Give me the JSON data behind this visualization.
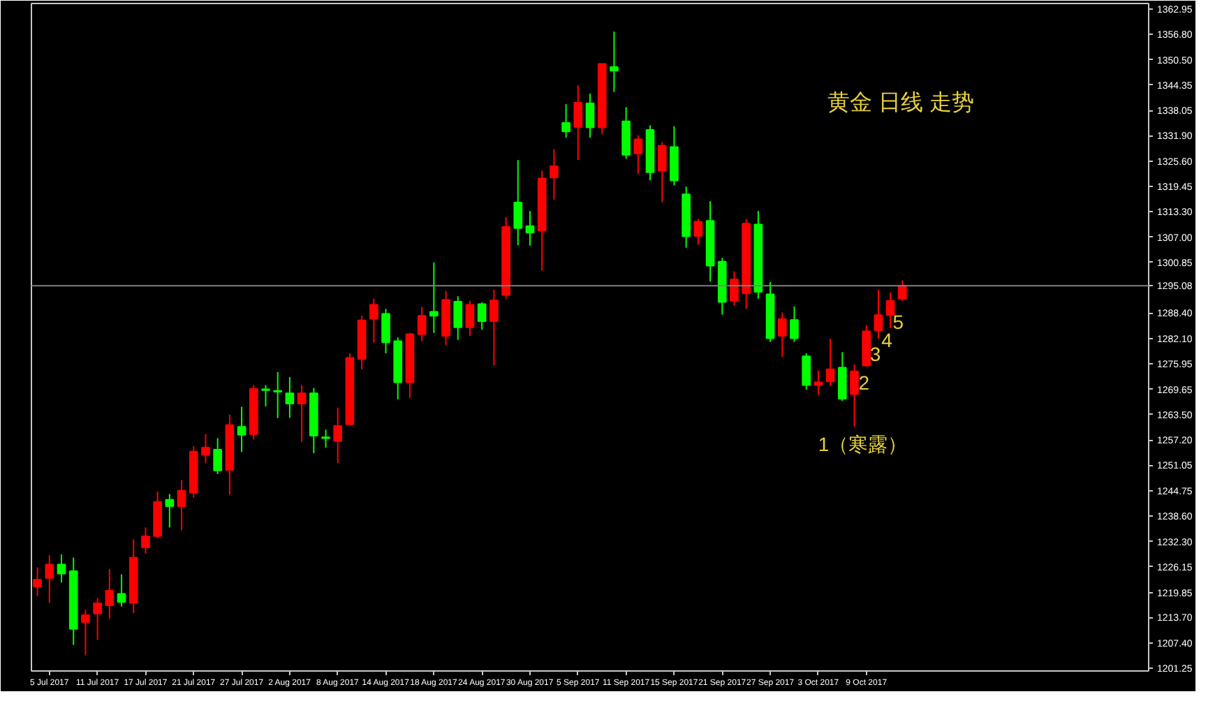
{
  "chart_data": {
    "type": "candlestick",
    "title": "黄金 日线 走势",
    "categories": [
      null,
      "5 Jul 2017",
      null,
      null,
      null,
      "11 Jul 2017",
      null,
      null,
      null,
      "17 Jul 2017",
      null,
      null,
      null,
      "21 Jul 2017",
      null,
      null,
      null,
      "27 Jul 2017",
      null,
      null,
      null,
      "2 Aug 2017",
      null,
      null,
      null,
      "8 Aug 2017",
      null,
      null,
      null,
      "14 Aug 2017",
      null,
      null,
      null,
      "18 Aug 2017",
      null,
      null,
      null,
      "24 Aug 2017",
      null,
      null,
      null,
      "30 Aug 2017",
      null,
      null,
      null,
      "5 Sep 2017",
      null,
      null,
      null,
      "11 Sep 2017",
      null,
      null,
      null,
      "15 Sep 2017",
      null,
      null,
      null,
      "21 Sep 2017",
      null,
      null,
      null,
      "27 Sep 2017",
      null,
      null,
      null,
      "3 Oct 2017",
      null,
      null,
      null,
      "9 Oct 2017",
      null,
      null,
      null,
      null,
      null,
      null,
      null,
      null,
      null,
      null,
      null,
      null,
      null,
      null,
      null,
      null,
      null,
      null,
      null,
      null,
      null,
      null,
      null
    ],
    "ohlc": [
      [
        1221.3,
        1226.0,
        1219.0,
        1223.0
      ],
      [
        1223.4,
        1229.0,
        1217.3,
        1226.7
      ],
      [
        1226.7,
        1229.2,
        1222.3,
        1224.5
      ],
      [
        1225.1,
        1228.4,
        1207.0,
        1210.9
      ],
      [
        1212.6,
        1215.6,
        1204.5,
        1214.3
      ],
      [
        1214.7,
        1218.5,
        1208.2,
        1217.2
      ],
      [
        1216.7,
        1225.6,
        1213.4,
        1220.3
      ],
      [
        1219.5,
        1224.3,
        1216.4,
        1217.5
      ],
      [
        1217.3,
        1232.9,
        1214.8,
        1228.4
      ],
      [
        1230.9,
        1235.8,
        1229.4,
        1233.6
      ],
      [
        1233.7,
        1244.6,
        1233.1,
        1242.1
      ],
      [
        1242.6,
        1244.0,
        1235.8,
        1241.0
      ],
      [
        1241.0,
        1247.4,
        1235.1,
        1244.8
      ],
      [
        1244.3,
        1255.7,
        1243.1,
        1254.4
      ],
      [
        1253.6,
        1258.7,
        1251.6,
        1255.4
      ],
      [
        1254.9,
        1257.7,
        1248.9,
        1249.8
      ],
      [
        1249.9,
        1263.5,
        1243.8,
        1260.9
      ],
      [
        1260.5,
        1265.4,
        1254.3,
        1258.5
      ],
      [
        1258.7,
        1270.7,
        1257.4,
        1269.8
      ],
      [
        1269.7,
        1270.7,
        1265.5,
        1269.5
      ],
      [
        1269.3,
        1273.9,
        1262.6,
        1269.1
      ],
      [
        1268.7,
        1272.7,
        1262.7,
        1266.2
      ],
      [
        1266.2,
        1270.7,
        1256.8,
        1268.7
      ],
      [
        1268.7,
        1270.0,
        1254.0,
        1258.3
      ],
      [
        1257.9,
        1259.8,
        1255.4,
        1257.7
      ],
      [
        1257.0,
        1265.2,
        1251.6,
        1260.7
      ],
      [
        1261.1,
        1278.5,
        1260.9,
        1277.4
      ],
      [
        1277.1,
        1287.7,
        1274.6,
        1286.6
      ],
      [
        1287.0,
        1291.9,
        1281.1,
        1290.4
      ],
      [
        1288.2,
        1289.4,
        1278.5,
        1281.2
      ],
      [
        1281.5,
        1282.4,
        1267.2,
        1271.4
      ],
      [
        1271.4,
        1283.5,
        1267.6,
        1283.2
      ],
      [
        1283.2,
        1289.9,
        1281.5,
        1287.7
      ],
      [
        1288.7,
        1300.8,
        1283.5,
        1287.7
      ],
      [
        1282.8,
        1293.8,
        1280.5,
        1291.6
      ],
      [
        1291.2,
        1292.5,
        1281.8,
        1284.9
      ],
      [
        1284.9,
        1291.4,
        1282.8,
        1290.4
      ],
      [
        1290.6,
        1291.0,
        1284.3,
        1286.4
      ],
      [
        1286.4,
        1294.1,
        1275.5,
        1291.5
      ],
      [
        1292.8,
        1311.9,
        1291.9,
        1309.5
      ],
      [
        1315.5,
        1325.9,
        1305.0,
        1309.2
      ],
      [
        1309.7,
        1313.4,
        1304.9,
        1308.1
      ],
      [
        1308.6,
        1323.3,
        1298.8,
        1321.4
      ],
      [
        1321.6,
        1328.6,
        1316.2,
        1324.4
      ],
      [
        1335.0,
        1339.6,
        1331.4,
        1332.9
      ],
      [
        1334.0,
        1344.2,
        1325.9,
        1340.0
      ],
      [
        1339.8,
        1342.2,
        1331.4,
        1333.9
      ],
      [
        1333.9,
        1349.5,
        1332.2,
        1349.5
      ],
      [
        1348.7,
        1357.4,
        1342.6,
        1347.8
      ],
      [
        1335.4,
        1338.9,
        1326.2,
        1327.2
      ],
      [
        1327.5,
        1332.0,
        1322.5,
        1331.0
      ],
      [
        1333.3,
        1334.4,
        1320.9,
        1322.9
      ],
      [
        1323.3,
        1330.3,
        1315.6,
        1329.4
      ],
      [
        1329.1,
        1334.2,
        1319.7,
        1320.9
      ],
      [
        1317.5,
        1319.4,
        1304.4,
        1307.2
      ],
      [
        1307.3,
        1311.5,
        1305.1,
        1310.8
      ],
      [
        1311.0,
        1315.8,
        1296.1,
        1300.0
      ],
      [
        1301.0,
        1301.9,
        1288.0,
        1291.1
      ],
      [
        1291.4,
        1298.6,
        1290.2,
        1296.6
      ],
      [
        1293.2,
        1311.4,
        1289.4,
        1310.3
      ],
      [
        1310.1,
        1313.4,
        1291.9,
        1293.6
      ],
      [
        1293.0,
        1296.0,
        1281.3,
        1282.2
      ],
      [
        1282.8,
        1288.5,
        1277.7,
        1286.9
      ],
      [
        1286.7,
        1290.0,
        1281.3,
        1282.2
      ],
      [
        1277.8,
        1278.5,
        1269.6,
        1270.7
      ],
      [
        1270.7,
        1274.3,
        1268.3,
        1271.4
      ],
      [
        1271.6,
        1282.1,
        1270.5,
        1274.6
      ],
      [
        1275.0,
        1278.8,
        1266.8,
        1267.4
      ],
      [
        1268.5,
        1275.8,
        1260.5,
        1274.1
      ],
      [
        1275.5,
        1285.4,
        1275.2,
        1283.9
      ],
      [
        1284.1,
        1294.1,
        1282.1,
        1287.9
      ],
      [
        1287.9,
        1293.4,
        1284.7,
        1291.4
      ],
      [
        1291.9,
        1296.4,
        1291.4,
        1295.1
      ],
      null,
      null,
      null,
      null,
      null,
      null,
      null,
      null,
      null,
      null,
      null,
      null,
      null,
      null,
      null,
      null,
      null,
      null,
      null,
      null
    ],
    "colors": [
      "#ff0000",
      "#ff0000",
      "#00ff00",
      "#00ff00",
      "#ff0000",
      "#ff0000",
      "#ff0000",
      "#00ff00",
      "#ff0000",
      "#ff0000",
      "#ff0000",
      "#00ff00",
      "#ff0000",
      "#ff0000",
      "#ff0000",
      "#00ff00",
      "#ff0000",
      "#00ff00",
      "#ff0000",
      "#00ff00",
      "#00ff00",
      "#00ff00",
      "#ff0000",
      "#00ff00",
      "#00ff00",
      "#ff0000",
      "#ff0000",
      "#ff0000",
      "#ff0000",
      "#00ff00",
      "#00ff00",
      "#ff0000",
      "#ff0000",
      "#00ff00",
      "#ff0000",
      "#00ff00",
      "#ff0000",
      "#00ff00",
      "#ff0000",
      "#ff0000",
      "#00ff00",
      "#00ff00",
      "#ff0000",
      "#ff0000",
      "#00ff00",
      "#ff0000",
      "#00ff00",
      "#ff0000",
      "#00ff00",
      "#00ff00",
      "#ff0000",
      "#00ff00",
      "#ff0000",
      "#00ff00",
      "#00ff00",
      "#ff0000",
      "#00ff00",
      "#00ff00",
      "#ff0000",
      "#ff0000",
      "#00ff00",
      "#00ff00",
      "#ff0000",
      "#00ff00",
      "#00ff00",
      "#ff0000",
      "#ff0000",
      "#00ff00",
      "#ff0000",
      "#ff0000",
      "#ff0000",
      "#ff0000",
      "#ff0000",
      null,
      null,
      null,
      null,
      null,
      null,
      null,
      null,
      null,
      null,
      null,
      null,
      null,
      null,
      null,
      null,
      null,
      null,
      null,
      null
    ],
    "ylim": [
      1200.6,
      1364.3
    ],
    "yticks": [
      {
        "value": 1201.25,
        "label": "1201.25"
      },
      {
        "value": 1207.4,
        "label": "1207.40"
      },
      {
        "value": 1213.7,
        "label": "1213.70"
      },
      {
        "value": 1219.85,
        "label": "1219.85"
      },
      {
        "value": 1226.15,
        "label": "1226.15"
      },
      {
        "value": 1232.3,
        "label": "1232.30"
      },
      {
        "value": 1238.6,
        "label": "1238.60"
      },
      {
        "value": 1244.75,
        "label": "1244.75"
      },
      {
        "value": 1251.05,
        "label": "1251.05"
      },
      {
        "value": 1257.2,
        "label": "1257.20"
      },
      {
        "value": 1263.5,
        "label": "1263.50"
      },
      {
        "value": 1269.65,
        "label": "1269.65"
      },
      {
        "value": 1275.95,
        "label": "1275.95"
      },
      {
        "value": 1282.1,
        "label": "1282.10"
      },
      {
        "value": 1288.4,
        "label": "1288.40"
      },
      {
        "value": 1300.85,
        "label": "1300.85"
      },
      {
        "value": 1307.0,
        "label": "1307.00"
      },
      {
        "value": 1313.3,
        "label": "1313.30"
      },
      {
        "value": 1319.45,
        "label": "1319.45"
      },
      {
        "value": 1325.6,
        "label": "1325.60"
      },
      {
        "value": 1331.9,
        "label": "1331.90"
      },
      {
        "value": 1338.05,
        "label": "1338.05"
      },
      {
        "value": 1344.35,
        "label": "1344.35"
      },
      {
        "value": 1350.5,
        "label": "1350.50"
      },
      {
        "value": 1356.8,
        "label": "1356.80"
      },
      {
        "value": 1362.95,
        "label": "1362.95"
      }
    ],
    "ref_lines": [
      {
        "axis": "y",
        "value": 1295.08,
        "label": "1295.08",
        "color": "#808080"
      }
    ],
    "annotations": [
      "1（寒露）",
      "2",
      "3",
      "4",
      "5"
    ],
    "grid": false
  }
}
